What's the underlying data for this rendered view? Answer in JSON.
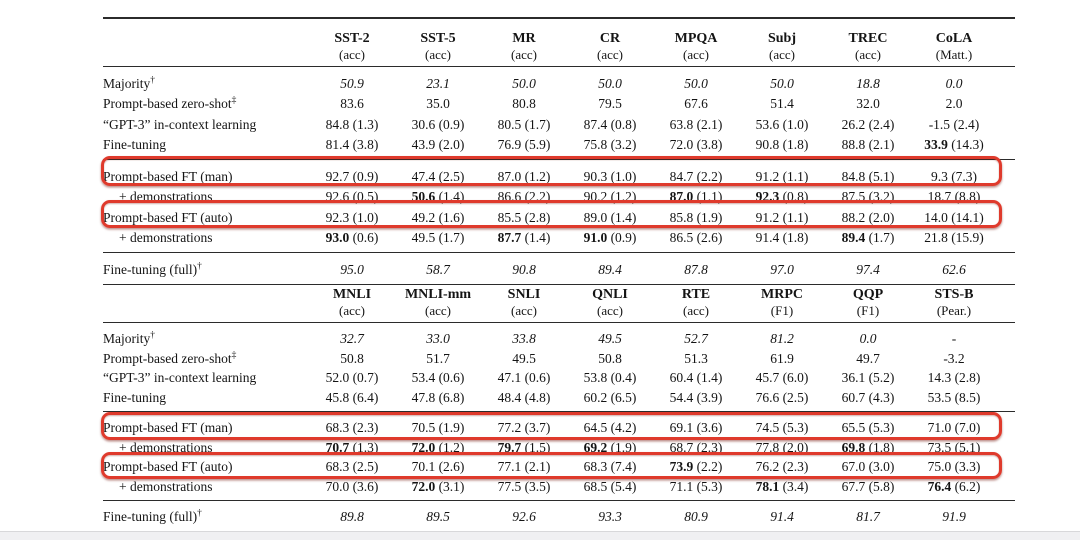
{
  "accent": {
    "highlight_color": "#df3a2c",
    "rule_color": "#2b2b2b",
    "text_color": "#141414",
    "window_edge_color": "#f0f0f2"
  },
  "tables": [
    {
      "name": "single-sentence-tasks",
      "columns": [
        {
          "task": "SST-2",
          "metric": "(acc)"
        },
        {
          "task": "SST-5",
          "metric": "(acc)"
        },
        {
          "task": "MR",
          "metric": "(acc)"
        },
        {
          "task": "CR",
          "metric": "(acc)"
        },
        {
          "task": "MPQA",
          "metric": "(acc)"
        },
        {
          "task": "Subj",
          "metric": "(acc)"
        },
        {
          "task": "TREC",
          "metric": "(acc)"
        },
        {
          "task": "CoLA",
          "metric": "(Matt.)"
        }
      ],
      "groups": [
        {
          "rows": [
            {
              "label": "Majority",
              "sup": "†",
              "italic": true,
              "cells": [
                {
                  "m": "50.9"
                },
                {
                  "m": "23.1"
                },
                {
                  "m": "50.0"
                },
                {
                  "m": "50.0"
                },
                {
                  "m": "50.0"
                },
                {
                  "m": "50.0"
                },
                {
                  "m": "18.8"
                },
                {
                  "m": "0.0"
                }
              ]
            },
            {
              "label": "Prompt-based zero-shot",
              "sup": "‡",
              "cells": [
                {
                  "m": "83.6"
                },
                {
                  "m": "35.0"
                },
                {
                  "m": "80.8"
                },
                {
                  "m": "79.5"
                },
                {
                  "m": "67.6"
                },
                {
                  "m": "51.4"
                },
                {
                  "m": "32.0"
                },
                {
                  "m": "2.0"
                }
              ]
            },
            {
              "label": "“GPT-3” in-context learning",
              "cells": [
                {
                  "m": "84.8",
                  "s": "(1.3)"
                },
                {
                  "m": "30.6",
                  "s": "(0.9)"
                },
                {
                  "m": "80.5",
                  "s": "(1.7)"
                },
                {
                  "m": "87.4",
                  "s": "(0.8)"
                },
                {
                  "m": "63.8",
                  "s": "(2.1)"
                },
                {
                  "m": "53.6",
                  "s": "(1.0)"
                },
                {
                  "m": "26.2",
                  "s": "(2.4)"
                },
                {
                  "m": "-1.5",
                  "s": "(2.4)"
                }
              ]
            },
            {
              "label": "Fine-tuning",
              "cells": [
                {
                  "m": "81.4",
                  "s": "(3.8)"
                },
                {
                  "m": "43.9",
                  "s": "(2.0)"
                },
                {
                  "m": "76.9",
                  "s": "(5.9)"
                },
                {
                  "m": "75.8",
                  "s": "(3.2)"
                },
                {
                  "m": "72.0",
                  "s": "(3.8)"
                },
                {
                  "m": "90.8",
                  "s": "(1.8)"
                },
                {
                  "m": "88.8",
                  "s": "(2.1)"
                },
                {
                  "m": "33.9",
                  "s": "(14.3)",
                  "b": true
                }
              ]
            }
          ]
        },
        {
          "rows": [
            {
              "label": "Prompt-based FT (man)",
              "cells": [
                {
                  "m": "92.7",
                  "s": "(0.9)"
                },
                {
                  "m": "47.4",
                  "s": "(2.5)"
                },
                {
                  "m": "87.0",
                  "s": "(1.2)"
                },
                {
                  "m": "90.3",
                  "s": "(1.0)"
                },
                {
                  "m": "84.7",
                  "s": "(2.2)"
                },
                {
                  "m": "91.2",
                  "s": "(1.1)"
                },
                {
                  "m": "84.8",
                  "s": "(5.1)"
                },
                {
                  "m": "9.3",
                  "s": "(7.3)"
                }
              ]
            },
            {
              "label": "+ demonstrations",
              "indent": true,
              "cells": [
                {
                  "m": "92.6",
                  "s": "(0.5)"
                },
                {
                  "m": "50.6",
                  "s": "(1.4)",
                  "b": true
                },
                {
                  "m": "86.6",
                  "s": "(2.2)"
                },
                {
                  "m": "90.2",
                  "s": "(1.2)"
                },
                {
                  "m": "87.0",
                  "s": "(1.1)",
                  "b": true
                },
                {
                  "m": "92.3",
                  "s": "(0.8)",
                  "b": true
                },
                {
                  "m": "87.5",
                  "s": "(3.2)"
                },
                {
                  "m": "18.7",
                  "s": "(8.8)"
                }
              ]
            },
            {
              "label": "Prompt-based FT (auto)",
              "cells": [
                {
                  "m": "92.3",
                  "s": "(1.0)"
                },
                {
                  "m": "49.2",
                  "s": "(1.6)"
                },
                {
                  "m": "85.5",
                  "s": "(2.8)"
                },
                {
                  "m": "89.0",
                  "s": "(1.4)"
                },
                {
                  "m": "85.8",
                  "s": "(1.9)"
                },
                {
                  "m": "91.2",
                  "s": "(1.1)"
                },
                {
                  "m": "88.2",
                  "s": "(2.0)"
                },
                {
                  "m": "14.0",
                  "s": "(14.1)"
                }
              ]
            },
            {
              "label": "+ demonstrations",
              "indent": true,
              "cells": [
                {
                  "m": "93.0",
                  "s": "(0.6)",
                  "b": true
                },
                {
                  "m": "49.5",
                  "s": "(1.7)"
                },
                {
                  "m": "87.7",
                  "s": "(1.4)",
                  "b": true
                },
                {
                  "m": "91.0",
                  "s": "(0.9)",
                  "b": true
                },
                {
                  "m": "86.5",
                  "s": "(2.6)"
                },
                {
                  "m": "91.4",
                  "s": "(1.8)"
                },
                {
                  "m": "89.4",
                  "s": "(1.7)",
                  "b": true
                },
                {
                  "m": "21.8",
                  "s": "(15.9)"
                }
              ]
            }
          ]
        },
        {
          "rows": [
            {
              "label": "Fine-tuning (full)",
              "sup": "†",
              "italic": true,
              "cells": [
                {
                  "m": "95.0"
                },
                {
                  "m": "58.7"
                },
                {
                  "m": "90.8"
                },
                {
                  "m": "89.4"
                },
                {
                  "m": "87.8"
                },
                {
                  "m": "97.0"
                },
                {
                  "m": "97.4"
                },
                {
                  "m": "62.6"
                }
              ]
            }
          ]
        }
      ]
    },
    {
      "name": "sentence-pair-tasks",
      "columns": [
        {
          "task": "MNLI",
          "metric": "(acc)"
        },
        {
          "task": "MNLI-mm",
          "metric": "(acc)"
        },
        {
          "task": "SNLI",
          "metric": "(acc)"
        },
        {
          "task": "QNLI",
          "metric": "(acc)"
        },
        {
          "task": "RTE",
          "metric": "(acc)"
        },
        {
          "task": "MRPC",
          "metric": "(F1)"
        },
        {
          "task": "QQP",
          "metric": "(F1)"
        },
        {
          "task": "STS-B",
          "metric": "(Pear.)"
        }
      ],
      "groups": [
        {
          "rows": [
            {
              "label": "Majority",
              "sup": "†",
              "italic": true,
              "cells": [
                {
                  "m": "32.7"
                },
                {
                  "m": "33.0"
                },
                {
                  "m": "33.8"
                },
                {
                  "m": "49.5"
                },
                {
                  "m": "52.7"
                },
                {
                  "m": "81.2"
                },
                {
                  "m": "0.0"
                },
                {
                  "m": "-"
                }
              ]
            },
            {
              "label": "Prompt-based zero-shot",
              "sup": "‡",
              "cells": [
                {
                  "m": "50.8"
                },
                {
                  "m": "51.7"
                },
                {
                  "m": "49.5"
                },
                {
                  "m": "50.8"
                },
                {
                  "m": "51.3"
                },
                {
                  "m": "61.9"
                },
                {
                  "m": "49.7"
                },
                {
                  "m": "-3.2"
                }
              ]
            },
            {
              "label": "“GPT-3” in-context learning",
              "cells": [
                {
                  "m": "52.0",
                  "s": "(0.7)"
                },
                {
                  "m": "53.4",
                  "s": "(0.6)"
                },
                {
                  "m": "47.1",
                  "s": "(0.6)"
                },
                {
                  "m": "53.8",
                  "s": "(0.4)"
                },
                {
                  "m": "60.4",
                  "s": "(1.4)"
                },
                {
                  "m": "45.7",
                  "s": "(6.0)"
                },
                {
                  "m": "36.1",
                  "s": "(5.2)"
                },
                {
                  "m": "14.3",
                  "s": "(2.8)"
                }
              ]
            },
            {
              "label": "Fine-tuning",
              "cells": [
                {
                  "m": "45.8",
                  "s": "(6.4)"
                },
                {
                  "m": "47.8",
                  "s": "(6.8)"
                },
                {
                  "m": "48.4",
                  "s": "(4.8)"
                },
                {
                  "m": "60.2",
                  "s": "(6.5)"
                },
                {
                  "m": "54.4",
                  "s": "(3.9)"
                },
                {
                  "m": "76.6",
                  "s": "(2.5)"
                },
                {
                  "m": "60.7",
                  "s": "(4.3)"
                },
                {
                  "m": "53.5",
                  "s": "(8.5)"
                }
              ]
            }
          ]
        },
        {
          "rows": [
            {
              "label": "Prompt-based FT (man)",
              "cells": [
                {
                  "m": "68.3",
                  "s": "(2.3)"
                },
                {
                  "m": "70.5",
                  "s": "(1.9)"
                },
                {
                  "m": "77.2",
                  "s": "(3.7)"
                },
                {
                  "m": "64.5",
                  "s": "(4.2)"
                },
                {
                  "m": "69.1",
                  "s": "(3.6)"
                },
                {
                  "m": "74.5",
                  "s": "(5.3)"
                },
                {
                  "m": "65.5",
                  "s": "(5.3)"
                },
                {
                  "m": "71.0",
                  "s": "(7.0)"
                }
              ]
            },
            {
              "label": "+ demonstrations",
              "indent": true,
              "cells": [
                {
                  "m": "70.7",
                  "s": "(1.3)",
                  "b": true
                },
                {
                  "m": "72.0",
                  "s": "(1.2)",
                  "b": true
                },
                {
                  "m": "79.7",
                  "s": "(1.5)",
                  "b": true
                },
                {
                  "m": "69.2",
                  "s": "(1.9)",
                  "b": true
                },
                {
                  "m": "68.7",
                  "s": "(2.3)"
                },
                {
                  "m": "77.8",
                  "s": "(2.0)"
                },
                {
                  "m": "69.8",
                  "s": "(1.8)",
                  "b": true
                },
                {
                  "m": "73.5",
                  "s": "(5.1)"
                }
              ]
            },
            {
              "label": "Prompt-based FT (auto)",
              "cells": [
                {
                  "m": "68.3",
                  "s": "(2.5)"
                },
                {
                  "m": "70.1",
                  "s": "(2.6)"
                },
                {
                  "m": "77.1",
                  "s": "(2.1)"
                },
                {
                  "m": "68.3",
                  "s": "(7.4)"
                },
                {
                  "m": "73.9",
                  "s": "(2.2)",
                  "b": true
                },
                {
                  "m": "76.2",
                  "s": "(2.3)"
                },
                {
                  "m": "67.0",
                  "s": "(3.0)"
                },
                {
                  "m": "75.0",
                  "s": "(3.3)"
                }
              ]
            },
            {
              "label": "+ demonstrations",
              "indent": true,
              "cells": [
                {
                  "m": "70.0",
                  "s": "(3.6)"
                },
                {
                  "m": "72.0",
                  "s": "(3.1)",
                  "b": true
                },
                {
                  "m": "77.5",
                  "s": "(3.5)"
                },
                {
                  "m": "68.5",
                  "s": "(5.4)"
                },
                {
                  "m": "71.1",
                  "s": "(5.3)"
                },
                {
                  "m": "78.1",
                  "s": "(3.4)",
                  "b": true
                },
                {
                  "m": "67.7",
                  "s": "(5.8)"
                },
                {
                  "m": "76.4",
                  "s": "(6.2)",
                  "b": true
                }
              ]
            }
          ]
        },
        {
          "rows": [
            {
              "label": "Fine-tuning (full)",
              "sup": "†",
              "italic": true,
              "cells": [
                {
                  "m": "89.8"
                },
                {
                  "m": "89.5"
                },
                {
                  "m": "92.6"
                },
                {
                  "m": "93.3"
                },
                {
                  "m": "80.9"
                },
                {
                  "m": "91.4"
                },
                {
                  "m": "81.7"
                },
                {
                  "m": "91.9"
                }
              ]
            }
          ]
        }
      ]
    }
  ],
  "highlights": [
    {
      "target": "prompt-based-ft-man-single-sentence"
    },
    {
      "target": "prompt-based-ft-auto-single-sentence"
    },
    {
      "target": "prompt-based-ft-man-sentence-pair"
    },
    {
      "target": "prompt-based-ft-auto-sentence-pair"
    }
  ]
}
